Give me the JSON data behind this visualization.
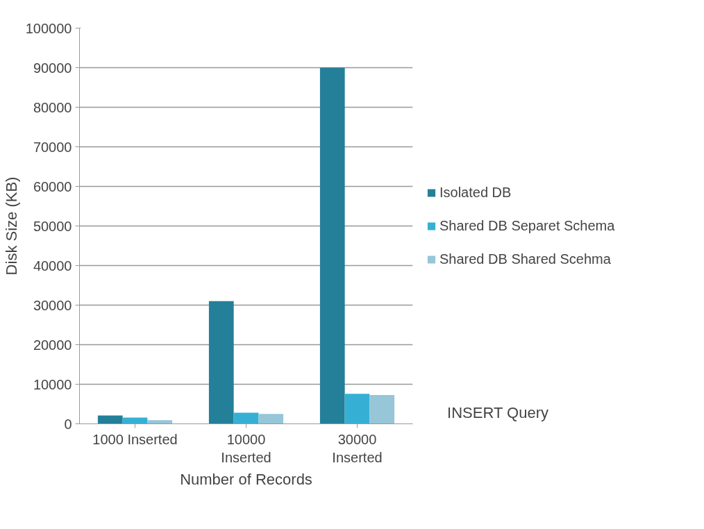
{
  "chart_data": {
    "type": "bar",
    "xlabel": "Number of Records",
    "ylabel": "Disk Size (KB)",
    "categories": [
      "1000 Inserted",
      "10000 Inserted",
      "30000 Inserted"
    ],
    "series": [
      {
        "name": "Isolated DB",
        "color": "#247f99",
        "values": [
          2100,
          31000,
          90000
        ]
      },
      {
        "name": "Shared DB Separet Schema",
        "color": "#35b0d4",
        "values": [
          1600,
          2800,
          7600
        ]
      },
      {
        "name": "Shared DB Shared Scehma",
        "color": "#96c6d8",
        "values": [
          900,
          2500,
          7300
        ]
      }
    ],
    "ylim": [
      0,
      100000
    ],
    "yticks": [
      0,
      10000,
      20000,
      30000,
      40000,
      50000,
      60000,
      70000,
      80000,
      90000,
      100000
    ],
    "grid": "y",
    "legend": "right",
    "annotations": [
      "INSERT Query"
    ]
  }
}
